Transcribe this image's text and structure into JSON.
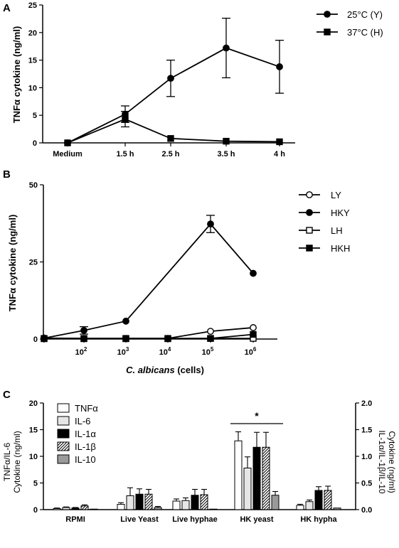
{
  "chart_data": [
    {
      "panel": "A",
      "type": "line",
      "categories": [
        "Medium",
        "1.5 h",
        "2.5 h",
        "3.5 h",
        "4 h"
      ],
      "ylabel": "TNFα cytokine (ng/ml)",
      "ylim": [
        0,
        25
      ],
      "yticks": [
        "0",
        "5",
        "10",
        "15",
        "20",
        "25"
      ],
      "legend_placement": "top-right",
      "series": [
        {
          "name": "25°C (Y)",
          "marker": "circle-filled",
          "values": [
            0,
            5.2,
            11.7,
            17.2,
            13.8
          ],
          "errors": [
            0,
            1.5,
            3.3,
            5.4,
            4.8
          ]
        },
        {
          "name": "37°C (H)",
          "marker": "square-filled",
          "values": [
            0,
            4.3,
            0.8,
            0.3,
            0.2
          ],
          "errors": [
            0,
            1.4,
            0,
            0,
            0
          ]
        }
      ]
    },
    {
      "panel": "B",
      "type": "line",
      "categories": [
        "10",
        "10",
        "10",
        "10",
        "10",
        "10"
      ],
      "exponents": [
        "",
        "2",
        "3",
        "4",
        "5",
        "6"
      ],
      "xlabel_italic": "C. albicans",
      "xlabel_rest": " (cells)",
      "ylabel": "TNFα cytokine (ng/ml)",
      "ylim": [
        0,
        50
      ],
      "yticks": [
        "0",
        "25",
        "50"
      ],
      "legend_placement": "top-right",
      "series": [
        {
          "name": "LY",
          "marker": "circle-open",
          "values": [
            0.3,
            0.2,
            0.2,
            0.2,
            2.5,
            3.7
          ],
          "errors": [
            0,
            0,
            0,
            0,
            0,
            0
          ]
        },
        {
          "name": "HKY",
          "marker": "circle-filled",
          "values": [
            0.3,
            2.8,
            5.8,
            null,
            37.3,
            21.3
          ],
          "errors": [
            0,
            1.2,
            0,
            0,
            2.8,
            0
          ]
        },
        {
          "name": "LH",
          "marker": "square-open",
          "values": [
            0.2,
            0.2,
            0.2,
            0.2,
            0.2,
            0.2
          ],
          "errors": [
            0,
            0,
            0,
            0,
            0,
            0
          ]
        },
        {
          "name": "HKH",
          "marker": "square-filled",
          "values": [
            0.1,
            0.1,
            0.1,
            0.1,
            0.2,
            1.5
          ],
          "errors": [
            0,
            0,
            0,
            0,
            0,
            0
          ]
        }
      ]
    },
    {
      "panel": "C",
      "type": "bar",
      "categories": [
        "RPMI",
        "Live Yeast",
        "Live hyphae",
        "HK yeast",
        "HK hypha"
      ],
      "ylabel_left_line1": "TNFα/IL-6",
      "ylabel_left_line2": "Cytokine (ng/ml)",
      "ylim_left": [
        0,
        20
      ],
      "yticks_left": [
        "0",
        "5",
        "10",
        "15",
        "20"
      ],
      "ylabel_right_line1": "IL-1α/IL-1β/IL-10",
      "ylabel_right_line2": "Cytokine (ng/ml)",
      "ylim_right": [
        0,
        2.0
      ],
      "yticks_right": [
        "0.0",
        "0.5",
        "1.0",
        "1.5",
        "2.0"
      ],
      "legend_placement": "top-left",
      "significance": {
        "label": "*",
        "category": "HK yeast"
      },
      "series": [
        {
          "name": "TNFα",
          "axis": "left",
          "fill": "#ffffff",
          "values": [
            0.2,
            1.0,
            1.6,
            12.9,
            0.8
          ],
          "errors": [
            0.1,
            0.3,
            0.4,
            1.7,
            0.2
          ]
        },
        {
          "name": "IL-6",
          "axis": "left",
          "fill": "#e6e6e6",
          "values": [
            0.4,
            2.6,
            1.7,
            7.8,
            1.5
          ],
          "errors": [
            0.1,
            1.5,
            0.5,
            2.1,
            0.3
          ]
        },
        {
          "name": "IL-1α",
          "axis": "right",
          "fill": "#000000",
          "values": [
            0.03,
            0.29,
            0.27,
            1.17,
            0.36
          ],
          "errors": [
            0.01,
            0.1,
            0.11,
            0.28,
            0.07
          ]
        },
        {
          "name": "IL-1β",
          "axis": "right",
          "fill": "hatch",
          "values": [
            0.07,
            0.29,
            0.28,
            1.17,
            0.36
          ],
          "errors": [
            0.02,
            0.09,
            0.1,
            0.28,
            0.08
          ]
        },
        {
          "name": "IL-10",
          "axis": "right",
          "fill": "#9a9a9a",
          "values": [
            0.01,
            0.04,
            0.01,
            0.27,
            0.03
          ],
          "errors": [
            0,
            0.02,
            0,
            0.07,
            0
          ]
        }
      ]
    }
  ],
  "panel_labels": [
    "A",
    "B",
    "C"
  ]
}
